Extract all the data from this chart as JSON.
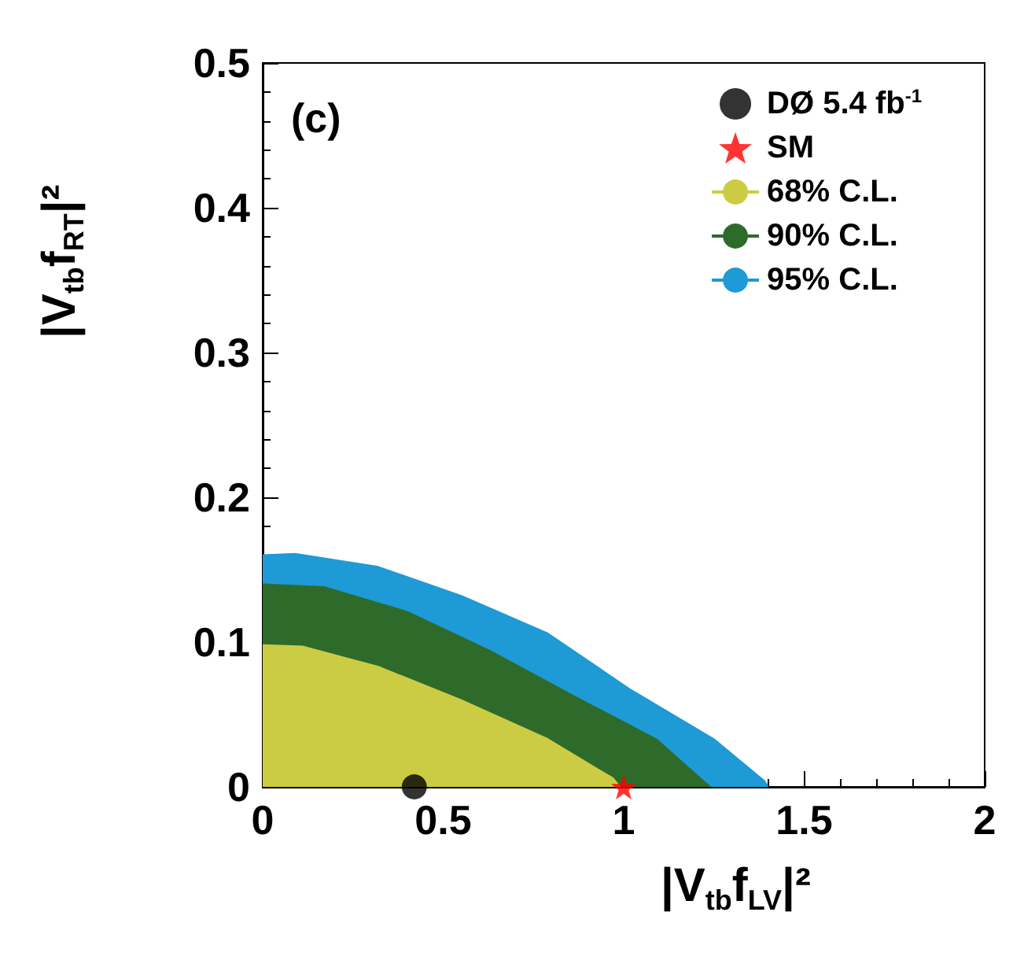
{
  "chart_data": {
    "type": "area",
    "xlabel": "|V$_{tb}$f$_{LV}$|²",
    "ylabel": "|V$_{tb}$f$_{RT}$|²",
    "annotations": [
      "(c)"
    ],
    "xlim": [
      0,
      2
    ],
    "xticks": [
      0,
      0.5,
      1,
      1.5,
      2
    ],
    "ylim": [
      0,
      0.5
    ],
    "yticks": [
      0,
      0.1,
      0.2,
      0.3,
      0.4,
      0.5
    ],
    "grid": false,
    "legend": "top right",
    "series": [
      {
        "name": "DØ 5.4 fb$^{-1}$",
        "type": "scatter",
        "marker": "circle",
        "color": "#000000",
        "x": [
          0.42
        ],
        "values": [
          0
        ]
      },
      {
        "name": "SM",
        "type": "scatter",
        "marker": "star",
        "color": "#ff0000",
        "x": [
          1
        ],
        "values": [
          0
        ]
      },
      {
        "name": "68% C.L.",
        "color": "#cccc44",
        "x": [
          0,
          0.11,
          0.32,
          0.55,
          0.79,
          0.97,
          0.99
        ],
        "values": [
          0.098,
          0.097,
          0.083,
          0.06,
          0.033,
          0.006,
          0
        ]
      },
      {
        "name": "90% C.L.",
        "color": "#2e6b2a",
        "x": [
          0,
          0.17,
          0.4,
          0.63,
          0.86,
          1.09,
          1.23,
          1.24
        ],
        "values": [
          0.14,
          0.138,
          0.121,
          0.094,
          0.063,
          0.033,
          0.002,
          0
        ]
      },
      {
        "name": "95% C.L.",
        "color": "#1e9ad6",
        "x": [
          0,
          0.09,
          0.32,
          0.55,
          0.79,
          1.02,
          1.25,
          1.39,
          1.4
        ],
        "values": [
          0.16,
          0.161,
          0.152,
          0.132,
          0.106,
          0.067,
          0.033,
          0.004,
          0
        ]
      }
    ]
  }
}
